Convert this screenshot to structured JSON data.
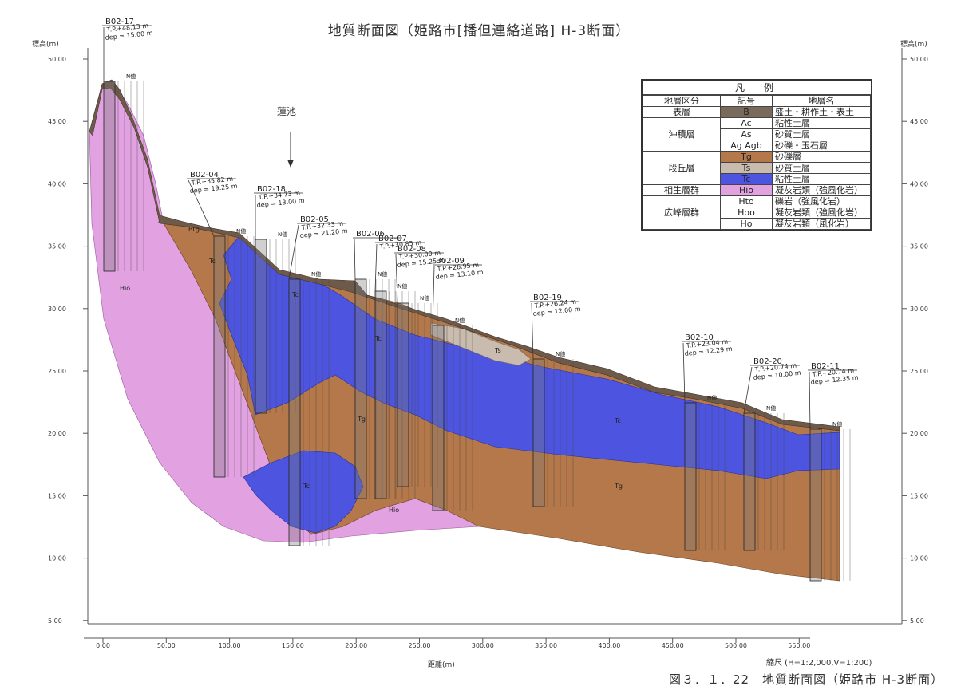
{
  "title": "地質断面図（姫路市[播但連絡道路] H-3断面）",
  "y_axis_label_left": "標高(m)",
  "y_axis_label_right": "標高(m)",
  "x_axis_label": "距離(m)",
  "scale_note": "縮尺 (H=1:2,000,V=1:200)",
  "caption": "図３．１．22　地質断面図（姫路市 H-3断面）",
  "y_ticks": [
    "50.00",
    "45.00",
    "40.00",
    "35.00",
    "30.00",
    "25.00",
    "20.00",
    "15.00",
    "10.00",
    "5.00"
  ],
  "x_ticks": [
    "0.00",
    "50.00",
    "100.00",
    "150.00",
    "200.00",
    "250.00",
    "300.00",
    "350.00",
    "400.00",
    "450.00",
    "500.00",
    "550.00"
  ],
  "landmark": {
    "label": "蓮池"
  },
  "legend": {
    "title": "凡　例",
    "headers": [
      "地層区分",
      "記号",
      "地層名"
    ],
    "rows": [
      {
        "group": "表層",
        "symbol": "B",
        "name": "盛土・耕作土・表土",
        "color": "#7a6a5c"
      },
      {
        "group": "沖積層",
        "symbol": "Ac",
        "name": "粘性土層",
        "color": "#ffffff"
      },
      {
        "group": "",
        "symbol": "As",
        "name": "砂質土層",
        "color": "#ffffff"
      },
      {
        "group": "",
        "symbol": "Ag Agb",
        "name": "砂礫・玉石層",
        "color": "#ffffff"
      },
      {
        "group": "段丘層",
        "symbol": "Tg",
        "name": "砂礫層",
        "color": "#b5784a"
      },
      {
        "group": "",
        "symbol": "Ts",
        "name": "砂質土層",
        "color": "#c9bcae"
      },
      {
        "group": "",
        "symbol": "Tc",
        "name": "粘性土層",
        "color": "#4d55e0"
      },
      {
        "group": "相生層群",
        "symbol": "Hio",
        "name": "凝灰岩類（強風化岩）",
        "color": "#e2a2e2"
      },
      {
        "group": "広峰層群",
        "symbol": "Hto",
        "name": "礫岩（強風化岩）",
        "color": "#ffffff"
      },
      {
        "group": "",
        "symbol": "Hoo",
        "name": "凝灰岩類（強風化岩）",
        "color": "#ffffff"
      },
      {
        "group": "",
        "symbol": "Ho",
        "name": "凝灰岩類（風化岩）",
        "color": "#ffffff"
      }
    ]
  },
  "layer_labels": [
    "Hio",
    "Tc",
    "Tc",
    "Tg",
    "Tc",
    "Tg",
    "Ts",
    "Tc",
    "Tg",
    "Hio",
    "B",
    "Tc"
  ],
  "n_value_label": "N値",
  "boreholes": [
    {
      "id": "B02-17",
      "tp": "T.P.+48.13 m",
      "dep": "dep = 15.00 m"
    },
    {
      "id": "B02-04",
      "tp": "T.P.+35.82 m",
      "dep": "dep = 19.25 m"
    },
    {
      "id": "B02-18",
      "tp": "T.P.+34.73 m",
      "dep": "dep = 13.00 m"
    },
    {
      "id": "B02-05",
      "tp": "T.P.+32.33 m",
      "dep": "dep = 21.20 m"
    },
    {
      "id": "B02-06",
      "tp": "",
      "dep": ""
    },
    {
      "id": "B02-07",
      "tp": "T.P.+30.85 m",
      "dep": ""
    },
    {
      "id": "B02-08",
      "tp": "T.P.+30.00 m",
      "dep": "dep = 15.25 m"
    },
    {
      "id": "B02-09",
      "tp": "T.P.+26.95 m",
      "dep": "dep = 13.10 m"
    },
    {
      "id": "B02-19",
      "tp": "T.P.+26.24 m",
      "dep": "dep = 12.00 m"
    },
    {
      "id": "B02-10",
      "tp": "T.P.+23.04 m",
      "dep": "dep = 12.29 m"
    },
    {
      "id": "B02-20",
      "tp": "T.P.+20.74 m",
      "dep": "dep = 10.00 m"
    },
    {
      "id": "B02-11",
      "tp": "T.P.+20.74 m",
      "dep": "dep = 12.35 m"
    }
  ]
}
